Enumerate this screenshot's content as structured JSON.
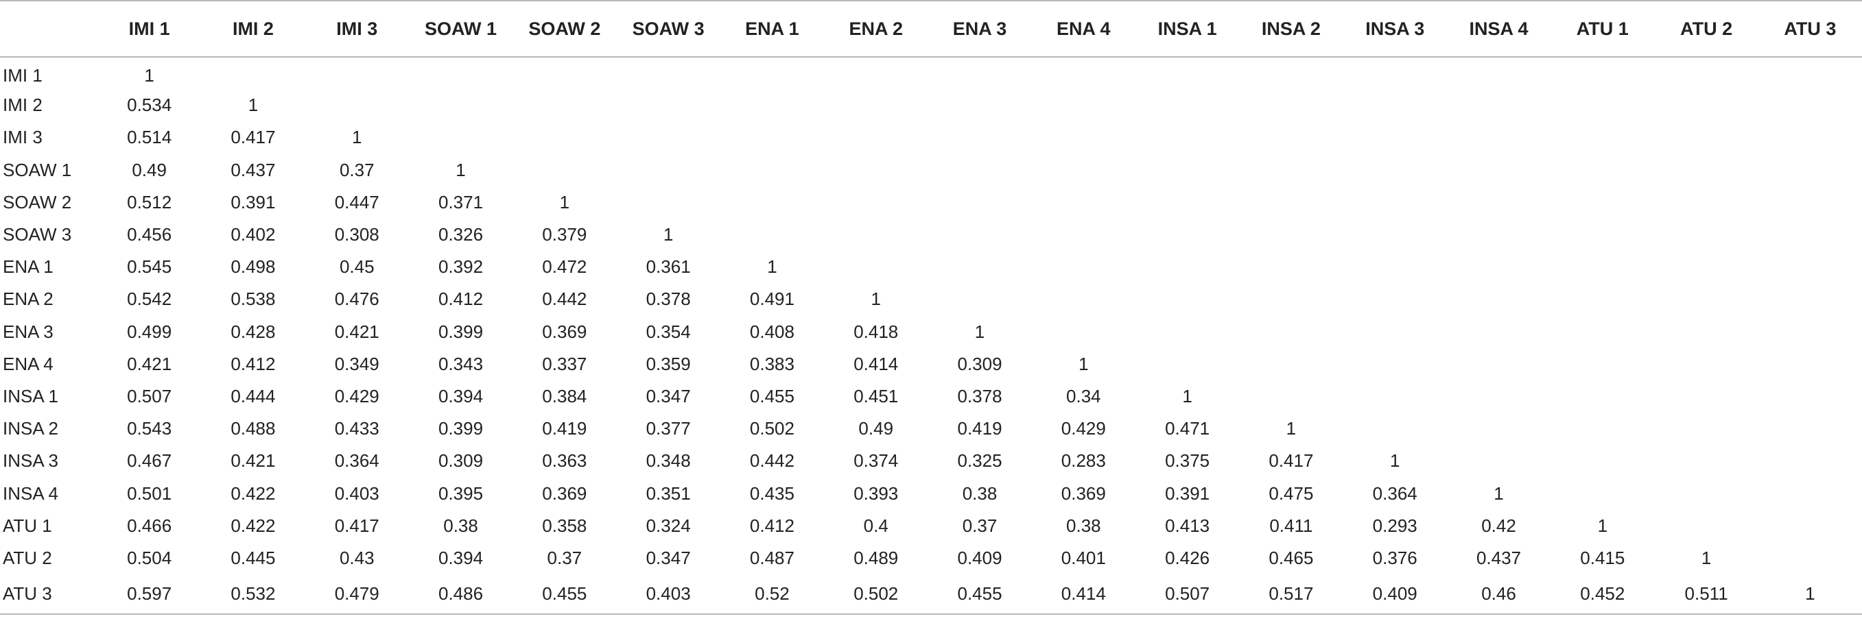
{
  "table": {
    "corner_label": "",
    "columns": [
      "IMI 1",
      "IMI 2",
      "IMI 3",
      "SOAW 1",
      "SOAW 2",
      "SOAW 3",
      "ENA 1",
      "ENA 2",
      "ENA 3",
      "ENA 4",
      "INSA 1",
      "INSA 2",
      "INSA 3",
      "INSA 4",
      "ATU 1",
      "ATU 2",
      "ATU 3"
    ],
    "rows": [
      {
        "label": "IMI 1",
        "cells": [
          "1"
        ]
      },
      {
        "label": "IMI 2",
        "cells": [
          "0.534",
          "1"
        ]
      },
      {
        "label": "IMI 3",
        "cells": [
          "0.514",
          "0.417",
          "1"
        ]
      },
      {
        "label": "SOAW 1",
        "cells": [
          "0.49",
          "0.437",
          "0.37",
          "1"
        ]
      },
      {
        "label": "SOAW 2",
        "cells": [
          "0.512",
          "0.391",
          "0.447",
          "0.371",
          "1"
        ]
      },
      {
        "label": "SOAW 3",
        "cells": [
          "0.456",
          "0.402",
          "0.308",
          "0.326",
          "0.379",
          "1"
        ]
      },
      {
        "label": "ENA 1",
        "cells": [
          "0.545",
          "0.498",
          "0.45",
          "0.392",
          "0.472",
          "0.361",
          "1"
        ]
      },
      {
        "label": "ENA 2",
        "cells": [
          "0.542",
          "0.538",
          "0.476",
          "0.412",
          "0.442",
          "0.378",
          "0.491",
          "1"
        ]
      },
      {
        "label": "ENA 3",
        "cells": [
          "0.499",
          "0.428",
          "0.421",
          "0.399",
          "0.369",
          "0.354",
          "0.408",
          "0.418",
          "1"
        ]
      },
      {
        "label": "ENA 4",
        "cells": [
          "0.421",
          "0.412",
          "0.349",
          "0.343",
          "0.337",
          "0.359",
          "0.383",
          "0.414",
          "0.309",
          "1"
        ]
      },
      {
        "label": "INSA 1",
        "cells": [
          "0.507",
          "0.444",
          "0.429",
          "0.394",
          "0.384",
          "0.347",
          "0.455",
          "0.451",
          "0.378",
          "0.34",
          "1"
        ]
      },
      {
        "label": "INSA 2",
        "cells": [
          "0.543",
          "0.488",
          "0.433",
          "0.399",
          "0.419",
          "0.377",
          "0.502",
          "0.49",
          "0.419",
          "0.429",
          "0.471",
          "1"
        ]
      },
      {
        "label": "INSA 3",
        "cells": [
          "0.467",
          "0.421",
          "0.364",
          "0.309",
          "0.363",
          "0.348",
          "0.442",
          "0.374",
          "0.325",
          "0.283",
          "0.375",
          "0.417",
          "1"
        ]
      },
      {
        "label": "INSA 4",
        "cells": [
          "0.501",
          "0.422",
          "0.403",
          "0.395",
          "0.369",
          "0.351",
          "0.435",
          "0.393",
          "0.38",
          "0.369",
          "0.391",
          "0.475",
          "0.364",
          "1"
        ]
      },
      {
        "label": "ATU 1",
        "cells": [
          "0.466",
          "0.422",
          "0.417",
          "0.38",
          "0.358",
          "0.324",
          "0.412",
          "0.4",
          "0.37",
          "0.38",
          "0.413",
          "0.411",
          "0.293",
          "0.42",
          "1"
        ]
      },
      {
        "label": "ATU 2",
        "cells": [
          "0.504",
          "0.445",
          "0.43",
          "0.394",
          "0.37",
          "0.347",
          "0.487",
          "0.489",
          "0.409",
          "0.401",
          "0.426",
          "0.465",
          "0.376",
          "0.437",
          "0.415",
          "1"
        ]
      },
      {
        "label": "ATU 3",
        "cells": [
          "0.597",
          "0.532",
          "0.479",
          "0.486",
          "0.455",
          "0.403",
          "0.52",
          "0.502",
          "0.455",
          "0.414",
          "0.507",
          "0.517",
          "0.409",
          "0.46",
          "0.452",
          "0.511",
          "1"
        ]
      }
    ]
  },
  "colors": {
    "rule": "#b9b9b9",
    "text": "#222222"
  }
}
